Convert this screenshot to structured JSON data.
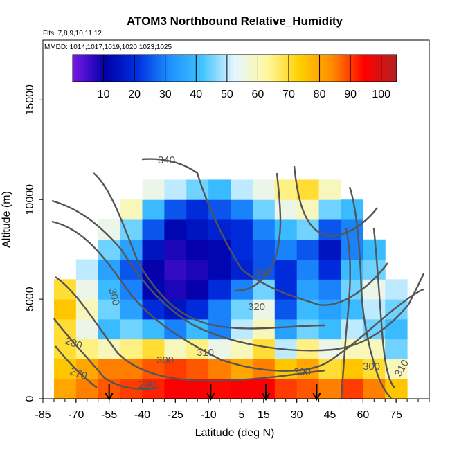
{
  "chart_data": {
    "type": "heatmap",
    "title": "ATOM3 Northbound Relative_Humidity",
    "flights_label": "Flts: 7,8,9,10,11,12",
    "dates_label": "MMDD: 1014,1017,1019,1020,1023,1025",
    "xlabel": "Latitude (deg N)",
    "ylabel": "Altitude (m)",
    "xlim": [
      -85,
      90
    ],
    "ylim": [
      0,
      18000
    ],
    "x_ticks": [
      -85,
      -70,
      -55,
      -40,
      -25,
      -10,
      5,
      15,
      30,
      45,
      60,
      75
    ],
    "y_ticks": [
      0,
      5000,
      10000,
      15000
    ],
    "colorbar": {
      "range": [
        0,
        105
      ],
      "ticks": [
        10,
        20,
        30,
        40,
        50,
        60,
        70,
        80,
        90,
        100
      ],
      "stops": [
        "#7a18e6",
        "#0000a8",
        "#0030e0",
        "#1e90ff",
        "#40c4ff",
        "#e6f6ff",
        "#fff8a0",
        "#ffd000",
        "#ff8c00",
        "#ff0000",
        "#b22222"
      ]
    },
    "humidity_grid": {
      "lat_bins": [
        -75,
        -65,
        -55,
        -45,
        -35,
        -25,
        -15,
        -5,
        5,
        15,
        25,
        35,
        45,
        55,
        65,
        75
      ],
      "alt_bins": [
        500,
        1500,
        2500,
        3500,
        4500,
        5500,
        6500,
        7500,
        8500,
        9500,
        10500
      ],
      "rows": [
        [
          80,
          85,
          88,
          90,
          92,
          95,
          95,
          94,
          95,
          95,
          90,
          88,
          85,
          90,
          85,
          75
        ],
        [
          75,
          80,
          85,
          85,
          88,
          90,
          88,
          85,
          80,
          85,
          75,
          80,
          70,
          75,
          70,
          60
        ],
        [
          70,
          65,
          60,
          65,
          70,
          60,
          65,
          55,
          60,
          70,
          50,
          65,
          55,
          60,
          60,
          45
        ],
        [
          70,
          55,
          40,
          45,
          40,
          30,
          40,
          30,
          50,
          60,
          35,
          45,
          40,
          50,
          45,
          40
        ],
        [
          75,
          60,
          45,
          35,
          20,
          15,
          20,
          30,
          45,
          55,
          25,
          40,
          35,
          40,
          50,
          45
        ],
        [
          70,
          55,
          40,
          30,
          12,
          8,
          10,
          20,
          30,
          45,
          20,
          35,
          30,
          45,
          55,
          50
        ],
        [
          null,
          50,
          35,
          25,
          10,
          6,
          8,
          12,
          18,
          25,
          20,
          30,
          20,
          40,
          45,
          null
        ],
        [
          null,
          null,
          45,
          35,
          15,
          8,
          10,
          12,
          20,
          25,
          30,
          25,
          15,
          30,
          40,
          null
        ],
        [
          null,
          null,
          55,
          45,
          25,
          12,
          15,
          18,
          20,
          30,
          40,
          45,
          25,
          30,
          null,
          null
        ],
        [
          null,
          null,
          null,
          60,
          40,
          25,
          20,
          25,
          30,
          45,
          55,
          60,
          45,
          40,
          null,
          null
        ],
        [
          null,
          null,
          null,
          null,
          55,
          50,
          45,
          40,
          50,
          55,
          65,
          70,
          60,
          null,
          null,
          null
        ]
      ]
    },
    "contour_labels": [
      "340",
      "330",
      "320",
      "310",
      "300",
      "300",
      "300",
      "290",
      "280",
      "270",
      "310",
      "300"
    ],
    "flight_arrows_lat": [
      -55,
      -9,
      16,
      39
    ]
  }
}
